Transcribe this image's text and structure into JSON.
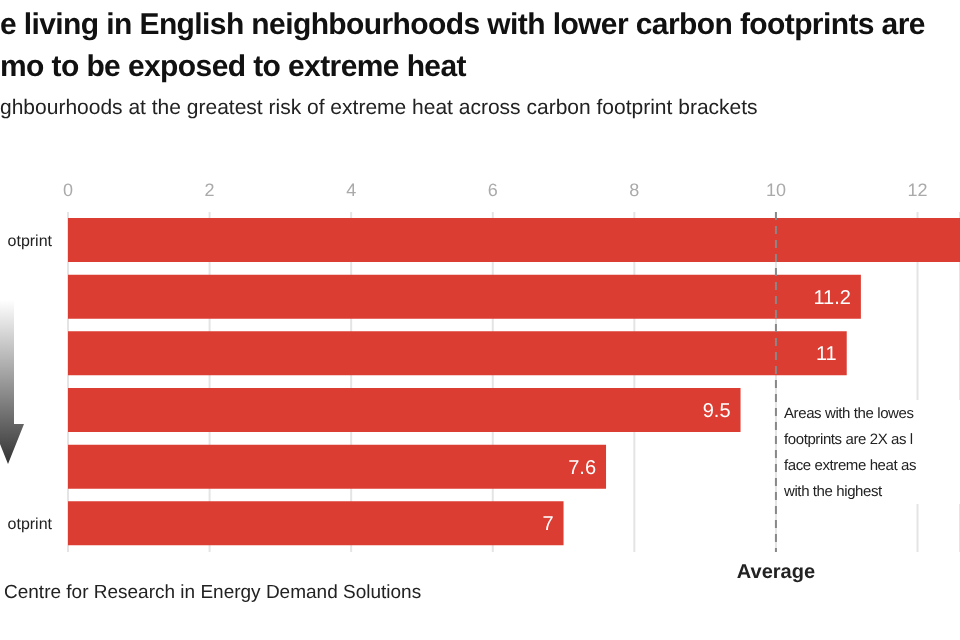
{
  "chart_data": {
    "type": "bar",
    "orientation": "horizontal",
    "title": "e living in English neighbourhoods with lower carbon footprints are mo to be exposed to extreme heat",
    "subtitle": "ghbourhoods at the greatest risk of extreme heat across carbon footprint brackets",
    "categories": [
      "otprint",
      null,
      null,
      null,
      null,
      "otprint"
    ],
    "values": [
      12.6,
      11.2,
      11,
      9.5,
      7.6,
      7
    ],
    "value_labels": [
      null,
      "11.2",
      "11",
      "9.5",
      "7.6",
      "7"
    ],
    "color": "#dc3d32",
    "xlim": [
      0,
      12.6
    ],
    "xticks": [
      0,
      2,
      4,
      6,
      8,
      10,
      12
    ],
    "grid": "x",
    "ref_lines": [
      {
        "axis": "x",
        "value": 10,
        "label": "Average",
        "color": "#888888",
        "line_style": "dashed"
      }
    ],
    "annotations": [
      "Areas with the lowes footprints are 2X as l face extreme heat as with the highest",
      "Centre for Research in Energy Demand Solutions"
    ]
  }
}
